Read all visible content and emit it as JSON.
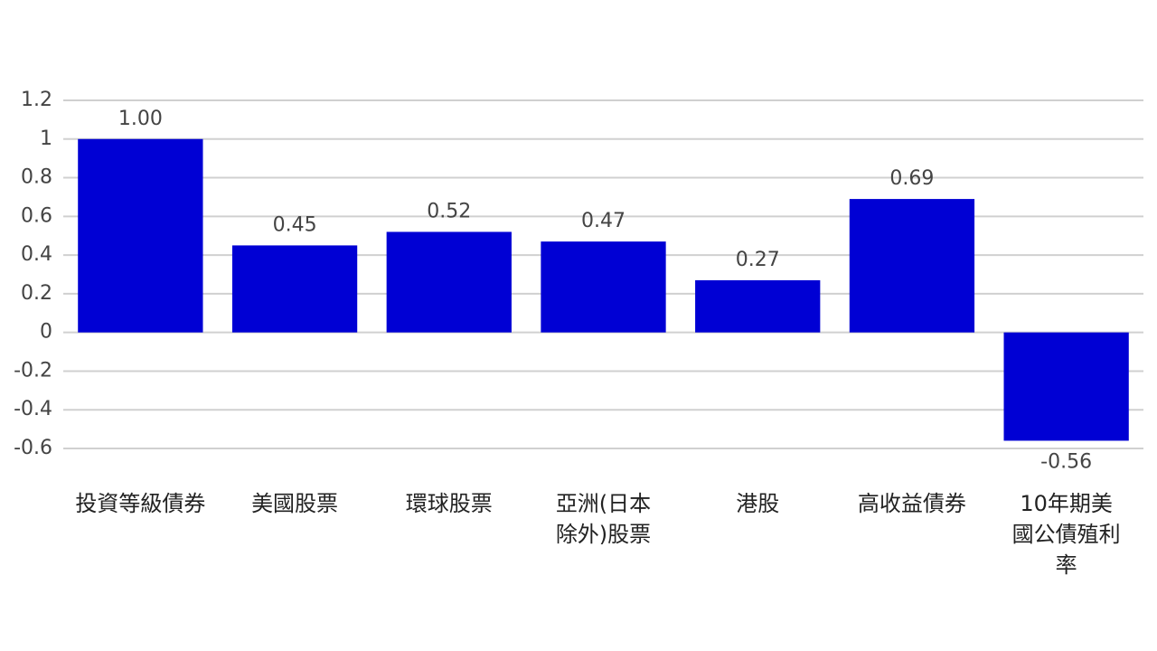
{
  "chart_data": {
    "type": "bar",
    "categories": [
      "投資等級債券",
      "美國股票",
      "環球股票",
      "亞洲(日本除外)股票",
      "港股",
      "高收益債券",
      "10年期美國公債殖利率"
    ],
    "values": [
      1.0,
      0.45,
      0.52,
      0.47,
      0.27,
      0.69,
      -0.56
    ],
    "value_labels": [
      "1.00",
      "0.45",
      "0.52",
      "0.47",
      "0.27",
      "0.69",
      "-0.56"
    ],
    "color": "#0000d4",
    "ylim": [
      -0.6,
      1.2
    ],
    "yticks": [
      -0.6,
      -0.4,
      -0.2,
      0,
      0.2,
      0.4,
      0.6,
      0.8,
      1,
      1.2
    ],
    "grid": true
  }
}
